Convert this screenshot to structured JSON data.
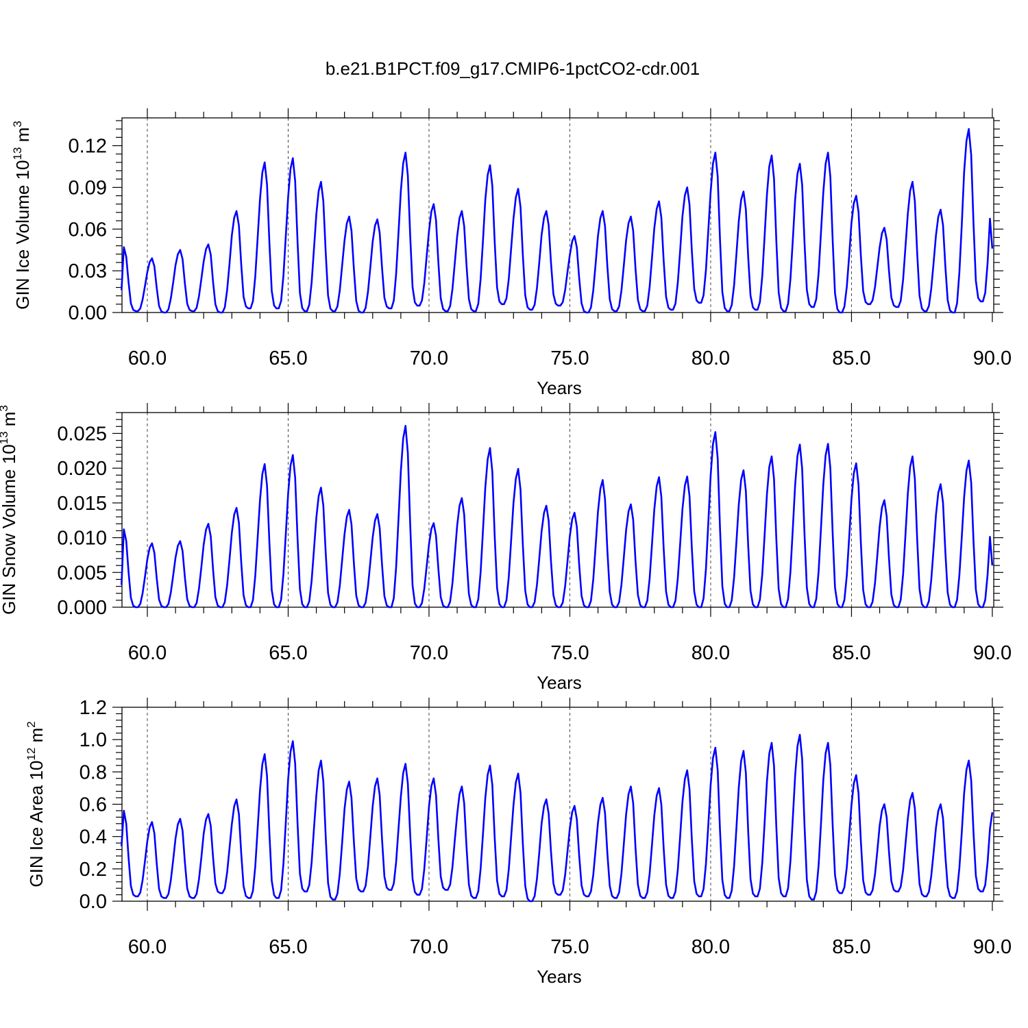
{
  "figure": {
    "title": "b.e21.B1PCT.f09_g17.CMIP6-1pctCO2-cdr.001"
  },
  "chart_data": [
    {
      "type": "line",
      "title": "b.e21.B1PCT.f09_g17.CMIP6-1pctCO2-cdr.001",
      "xlabel": "Years",
      "ylabel": "GIN Ice Volume 10",
      "ylabel_exp": "13",
      "ylabel_unit": " m",
      "ylabel_unit_exp": "3",
      "xlim": [
        59.1,
        90.05
      ],
      "ylim": [
        0,
        0.14
      ],
      "xticks": [
        60,
        65,
        70,
        75,
        80,
        85,
        90
      ],
      "xtick_labels": [
        "60.0",
        "65.0",
        "70.0",
        "75.0",
        "80.0",
        "85.0",
        "90.0"
      ],
      "yticks": [
        0,
        0.03,
        0.06,
        0.09,
        0.12
      ],
      "ytick_labels": [
        "0.00",
        "0.03",
        "0.06",
        "0.09",
        "0.12"
      ],
      "grid": "dashed vertical lines at x ticks",
      "line_color": "#0000ff",
      "series": [
        {
          "x_start": 59.0833,
          "x_step": 0.08333,
          "peaks": [
            0.047,
            0.039,
            0.045,
            0.049,
            0.073,
            0.108,
            0.111,
            0.094,
            0.069,
            0.067,
            0.115,
            0.078,
            0.073,
            0.106,
            0.089,
            0.073,
            0.055,
            0.073,
            0.069,
            0.08,
            0.09,
            0.115,
            0.087,
            0.113,
            0.107,
            0.115,
            0.084,
            0.061,
            0.094,
            0.074,
            0.132
          ],
          "troughs": [
            0.001,
            0.0,
            0.001,
            0.0,
            0.003,
            0.003,
            0.001,
            0.001,
            0.0,
            0.003,
            0.005,
            0.001,
            0.001,
            0.006,
            0.002,
            0.005,
            0.0,
            0.001,
            0.001,
            0.002,
            0.007,
            0.001,
            0.002,
            0.001,
            0.004,
            0.0,
            0.006,
            0.004,
            0.001,
            0.0,
            0.008
          ],
          "start_value": 0.016,
          "end_value": 0.046
        }
      ]
    },
    {
      "type": "line",
      "xlabel": "Years",
      "ylabel": "GIN Snow Volume 10",
      "ylabel_exp": "13",
      "ylabel_unit": " m",
      "ylabel_unit_exp": "3",
      "xlim": [
        59.1,
        90.05
      ],
      "ylim": [
        0,
        0.028
      ],
      "xticks": [
        60,
        65,
        70,
        75,
        80,
        85,
        90
      ],
      "xtick_labels": [
        "60.0",
        "65.0",
        "70.0",
        "75.0",
        "80.0",
        "85.0",
        "90.0"
      ],
      "yticks": [
        0,
        0.005,
        0.01,
        0.015,
        0.02,
        0.025
      ],
      "ytick_labels": [
        "0.000",
        "0.005",
        "0.010",
        "0.015",
        "0.020",
        "0.025"
      ],
      "grid": "dashed vertical lines at x ticks",
      "line_color": "#0000ff",
      "series": [
        {
          "x_start": 59.0833,
          "x_step": 0.08333,
          "peaks": [
            0.0112,
            0.0092,
            0.0095,
            0.012,
            0.0143,
            0.0206,
            0.0219,
            0.0172,
            0.014,
            0.0134,
            0.0261,
            0.0121,
            0.0157,
            0.0229,
            0.0199,
            0.0146,
            0.0136,
            0.0183,
            0.0148,
            0.0187,
            0.0188,
            0.0252,
            0.0197,
            0.0217,
            0.0234,
            0.0235,
            0.0207,
            0.0154,
            0.0217,
            0.0177,
            0.0211
          ],
          "troughs": [
            0,
            0,
            0,
            0,
            0,
            0,
            0,
            0,
            0,
            0,
            0,
            0,
            0,
            0,
            0,
            0,
            0,
            0,
            0,
            0,
            0,
            0,
            0,
            0,
            0,
            0,
            0,
            0,
            0,
            0,
            0
          ],
          "start_value": 0.0032,
          "end_value": 0.006
        }
      ]
    },
    {
      "type": "line",
      "xlabel": "Years",
      "ylabel": "GIN Ice Area 10",
      "ylabel_exp": "12",
      "ylabel_unit": " m",
      "ylabel_unit_exp": "2",
      "xlim": [
        59.1,
        90.05
      ],
      "ylim": [
        0,
        1.2
      ],
      "xticks": [
        60,
        65,
        70,
        75,
        80,
        85,
        90
      ],
      "xtick_labels": [
        "60.0",
        "65.0",
        "70.0",
        "75.0",
        "80.0",
        "85.0",
        "90.0"
      ],
      "yticks": [
        0,
        0.2,
        0.4,
        0.6,
        0.8,
        1.0,
        1.2
      ],
      "ytick_labels": [
        "0.0",
        "0.2",
        "0.4",
        "0.6",
        "0.8",
        "1.0",
        "1.2"
      ],
      "grid": "dashed vertical lines at x ticks",
      "line_color": "#0000ff",
      "series": [
        {
          "x_start": 59.0833,
          "x_step": 0.08333,
          "peaks": [
            0.56,
            0.49,
            0.51,
            0.54,
            0.63,
            0.91,
            0.99,
            0.87,
            0.74,
            0.76,
            0.85,
            0.76,
            0.71,
            0.84,
            0.79,
            0.63,
            0.59,
            0.64,
            0.71,
            0.7,
            0.81,
            0.95,
            0.93,
            0.98,
            1.03,
            0.98,
            0.78,
            0.6,
            0.67,
            0.6,
            0.87
          ],
          "troughs": [
            0.03,
            0.02,
            0.02,
            0.05,
            0.02,
            0.02,
            0.06,
            0.01,
            0.06,
            0.07,
            0.04,
            0.07,
            0.02,
            0.03,
            0.0,
            0.04,
            0.03,
            0.02,
            0.02,
            0.02,
            0.03,
            0.02,
            0.03,
            0.03,
            0.01,
            0.05,
            0.04,
            0.06,
            0.03,
            0.02,
            0.06
          ],
          "start_value": 0.34,
          "end_value": 0.55
        }
      ]
    }
  ]
}
